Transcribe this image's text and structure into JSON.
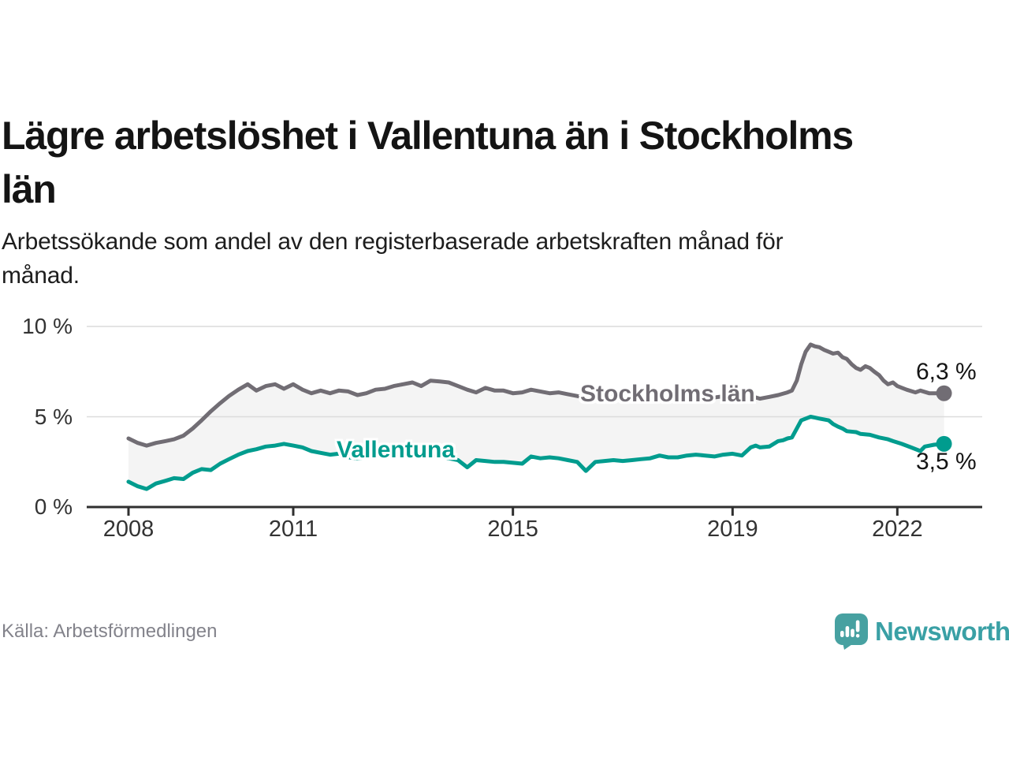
{
  "header": {
    "title": "Lägre arbetslöshet i Vallentuna än i Stockholms\nlän",
    "subtitle": "Arbetssökande som andel av den registerbaserade arbetskraften månad för\nmånad."
  },
  "chart_data": {
    "type": "line",
    "unit": "%",
    "ylim": [
      0,
      10
    ],
    "xlim": [
      2008,
      2023.5
    ],
    "grid": "horizontal",
    "band_fill": "#f4f4f4",
    "y_ticks": [
      {
        "value": 0,
        "label": "0 %"
      },
      {
        "value": 5,
        "label": "5 %"
      },
      {
        "value": 10,
        "label": "10 %"
      }
    ],
    "x_ticks": [
      {
        "value": 2008,
        "label": "2008"
      },
      {
        "value": 2011,
        "label": "2011"
      },
      {
        "value": 2015,
        "label": "2015"
      },
      {
        "value": 2019,
        "label": "2019"
      },
      {
        "value": 2022,
        "label": "2022"
      }
    ],
    "series": [
      {
        "name": "Stockholms län",
        "color": "#716d74",
        "end_label": "6,3 %",
        "end_value": 6.3,
        "points": [
          [
            2008.0,
            3.8
          ],
          [
            2008.17,
            3.55
          ],
          [
            2008.33,
            3.4
          ],
          [
            2008.5,
            3.55
          ],
          [
            2008.67,
            3.65
          ],
          [
            2008.83,
            3.75
          ],
          [
            2009.0,
            3.95
          ],
          [
            2009.17,
            4.35
          ],
          [
            2009.33,
            4.8
          ],
          [
            2009.5,
            5.3
          ],
          [
            2009.67,
            5.75
          ],
          [
            2009.83,
            6.15
          ],
          [
            2010.0,
            6.5
          ],
          [
            2010.17,
            6.8
          ],
          [
            2010.33,
            6.45
          ],
          [
            2010.5,
            6.7
          ],
          [
            2010.67,
            6.8
          ],
          [
            2010.83,
            6.55
          ],
          [
            2011.0,
            6.8
          ],
          [
            2011.17,
            6.5
          ],
          [
            2011.33,
            6.3
          ],
          [
            2011.5,
            6.45
          ],
          [
            2011.67,
            6.3
          ],
          [
            2011.83,
            6.45
          ],
          [
            2012.0,
            6.4
          ],
          [
            2012.17,
            6.2
          ],
          [
            2012.33,
            6.3
          ],
          [
            2012.5,
            6.5
          ],
          [
            2012.67,
            6.55
          ],
          [
            2012.83,
            6.7
          ],
          [
            2013.0,
            6.8
          ],
          [
            2013.17,
            6.9
          ],
          [
            2013.33,
            6.7
          ],
          [
            2013.5,
            7.0
          ],
          [
            2013.67,
            6.95
          ],
          [
            2013.83,
            6.9
          ],
          [
            2014.0,
            6.7
          ],
          [
            2014.17,
            6.5
          ],
          [
            2014.33,
            6.35
          ],
          [
            2014.5,
            6.6
          ],
          [
            2014.67,
            6.45
          ],
          [
            2014.83,
            6.45
          ],
          [
            2015.0,
            6.3
          ],
          [
            2015.17,
            6.35
          ],
          [
            2015.33,
            6.5
          ],
          [
            2015.5,
            6.4
          ],
          [
            2015.67,
            6.3
          ],
          [
            2015.83,
            6.35
          ],
          [
            2016.0,
            6.25
          ],
          [
            2016.25,
            6.1
          ],
          [
            2016.5,
            6.1
          ],
          [
            2016.75,
            6.15
          ],
          [
            2017.0,
            6.2
          ],
          [
            2017.25,
            6.1
          ],
          [
            2017.5,
            6.1
          ],
          [
            2017.75,
            6.05
          ],
          [
            2018.0,
            6.0
          ],
          [
            2018.25,
            6.05
          ],
          [
            2018.5,
            6.0
          ],
          [
            2018.75,
            6.1
          ],
          [
            2019.0,
            6.2
          ],
          [
            2019.17,
            6.0
          ],
          [
            2019.33,
            6.15
          ],
          [
            2019.5,
            6.0
          ],
          [
            2019.67,
            6.1
          ],
          [
            2019.83,
            6.2
          ],
          [
            2020.0,
            6.35
          ],
          [
            2020.08,
            6.45
          ],
          [
            2020.17,
            7.0
          ],
          [
            2020.25,
            7.9
          ],
          [
            2020.33,
            8.6
          ],
          [
            2020.42,
            9.0
          ],
          [
            2020.5,
            8.9
          ],
          [
            2020.58,
            8.85
          ],
          [
            2020.67,
            8.7
          ],
          [
            2020.75,
            8.6
          ],
          [
            2020.83,
            8.5
          ],
          [
            2020.92,
            8.55
          ],
          [
            2021.0,
            8.3
          ],
          [
            2021.08,
            8.2
          ],
          [
            2021.17,
            7.9
          ],
          [
            2021.25,
            7.7
          ],
          [
            2021.33,
            7.6
          ],
          [
            2021.42,
            7.8
          ],
          [
            2021.5,
            7.7
          ],
          [
            2021.58,
            7.5
          ],
          [
            2021.67,
            7.3
          ],
          [
            2021.75,
            7.0
          ],
          [
            2021.83,
            6.8
          ],
          [
            2021.92,
            6.9
          ],
          [
            2022.0,
            6.7
          ],
          [
            2022.17,
            6.5
          ],
          [
            2022.33,
            6.35
          ],
          [
            2022.42,
            6.45
          ],
          [
            2022.58,
            6.3
          ],
          [
            2022.75,
            6.3
          ],
          [
            2022.85,
            6.3
          ]
        ]
      },
      {
        "name": "Vallentuna",
        "color": "#009c8e",
        "end_label": "3,5 %",
        "end_value": 3.5,
        "points": [
          [
            2008.0,
            1.4
          ],
          [
            2008.17,
            1.15
          ],
          [
            2008.33,
            1.0
          ],
          [
            2008.5,
            1.3
          ],
          [
            2008.67,
            1.45
          ],
          [
            2008.83,
            1.6
          ],
          [
            2009.0,
            1.55
          ],
          [
            2009.17,
            1.9
          ],
          [
            2009.33,
            2.1
          ],
          [
            2009.5,
            2.05
          ],
          [
            2009.67,
            2.4
          ],
          [
            2009.83,
            2.65
          ],
          [
            2010.0,
            2.9
          ],
          [
            2010.17,
            3.1
          ],
          [
            2010.33,
            3.2
          ],
          [
            2010.5,
            3.35
          ],
          [
            2010.67,
            3.4
          ],
          [
            2010.83,
            3.5
          ],
          [
            2011.0,
            3.4
          ],
          [
            2011.17,
            3.3
          ],
          [
            2011.33,
            3.1
          ],
          [
            2011.5,
            3.0
          ],
          [
            2011.67,
            2.9
          ],
          [
            2011.83,
            2.95
          ],
          [
            2012.0,
            2.75
          ],
          [
            2012.17,
            2.7
          ],
          [
            2012.33,
            2.75
          ],
          [
            2012.5,
            2.9
          ],
          [
            2012.67,
            3.0
          ],
          [
            2012.83,
            2.9
          ],
          [
            2013.0,
            3.05
          ],
          [
            2013.25,
            3.0
          ],
          [
            2013.5,
            2.9
          ],
          [
            2013.75,
            2.75
          ],
          [
            2014.0,
            2.6
          ],
          [
            2014.17,
            2.2
          ],
          [
            2014.33,
            2.6
          ],
          [
            2014.5,
            2.55
          ],
          [
            2014.67,
            2.5
          ],
          [
            2014.83,
            2.5
          ],
          [
            2015.0,
            2.45
          ],
          [
            2015.17,
            2.4
          ],
          [
            2015.33,
            2.8
          ],
          [
            2015.5,
            2.7
          ],
          [
            2015.67,
            2.75
          ],
          [
            2015.83,
            2.7
          ],
          [
            2016.0,
            2.6
          ],
          [
            2016.17,
            2.5
          ],
          [
            2016.33,
            2.0
          ],
          [
            2016.5,
            2.5
          ],
          [
            2016.67,
            2.55
          ],
          [
            2016.83,
            2.6
          ],
          [
            2017.0,
            2.55
          ],
          [
            2017.17,
            2.6
          ],
          [
            2017.33,
            2.65
          ],
          [
            2017.5,
            2.7
          ],
          [
            2017.67,
            2.85
          ],
          [
            2017.83,
            2.75
          ],
          [
            2018.0,
            2.75
          ],
          [
            2018.17,
            2.85
          ],
          [
            2018.33,
            2.9
          ],
          [
            2018.5,
            2.85
          ],
          [
            2018.67,
            2.8
          ],
          [
            2018.83,
            2.9
          ],
          [
            2019.0,
            2.95
          ],
          [
            2019.17,
            2.85
          ],
          [
            2019.33,
            3.3
          ],
          [
            2019.42,
            3.4
          ],
          [
            2019.5,
            3.3
          ],
          [
            2019.67,
            3.35
          ],
          [
            2019.83,
            3.65
          ],
          [
            2019.92,
            3.7
          ],
          [
            2020.0,
            3.8
          ],
          [
            2020.08,
            3.85
          ],
          [
            2020.17,
            4.35
          ],
          [
            2020.25,
            4.8
          ],
          [
            2020.42,
            5.0
          ],
          [
            2020.5,
            4.95
          ],
          [
            2020.58,
            4.9
          ],
          [
            2020.75,
            4.8
          ],
          [
            2020.83,
            4.6
          ],
          [
            2020.92,
            4.45
          ],
          [
            2021.0,
            4.35
          ],
          [
            2021.08,
            4.2
          ],
          [
            2021.25,
            4.15
          ],
          [
            2021.33,
            4.05
          ],
          [
            2021.5,
            4.0
          ],
          [
            2021.67,
            3.85
          ],
          [
            2021.83,
            3.75
          ],
          [
            2021.92,
            3.65
          ],
          [
            2022.08,
            3.5
          ],
          [
            2022.25,
            3.3
          ],
          [
            2022.42,
            3.1
          ],
          [
            2022.5,
            3.35
          ],
          [
            2022.67,
            3.45
          ],
          [
            2022.85,
            3.5
          ]
        ]
      }
    ],
    "title": "Lägre arbetslöshet i Vallentuna än i Stockholms län",
    "xlabel": "",
    "ylabel": ""
  },
  "footer": {
    "source": "Källa: Arbetsförmedlingen",
    "brand": "Newsworthy",
    "brand_color": "#47a1a1"
  }
}
